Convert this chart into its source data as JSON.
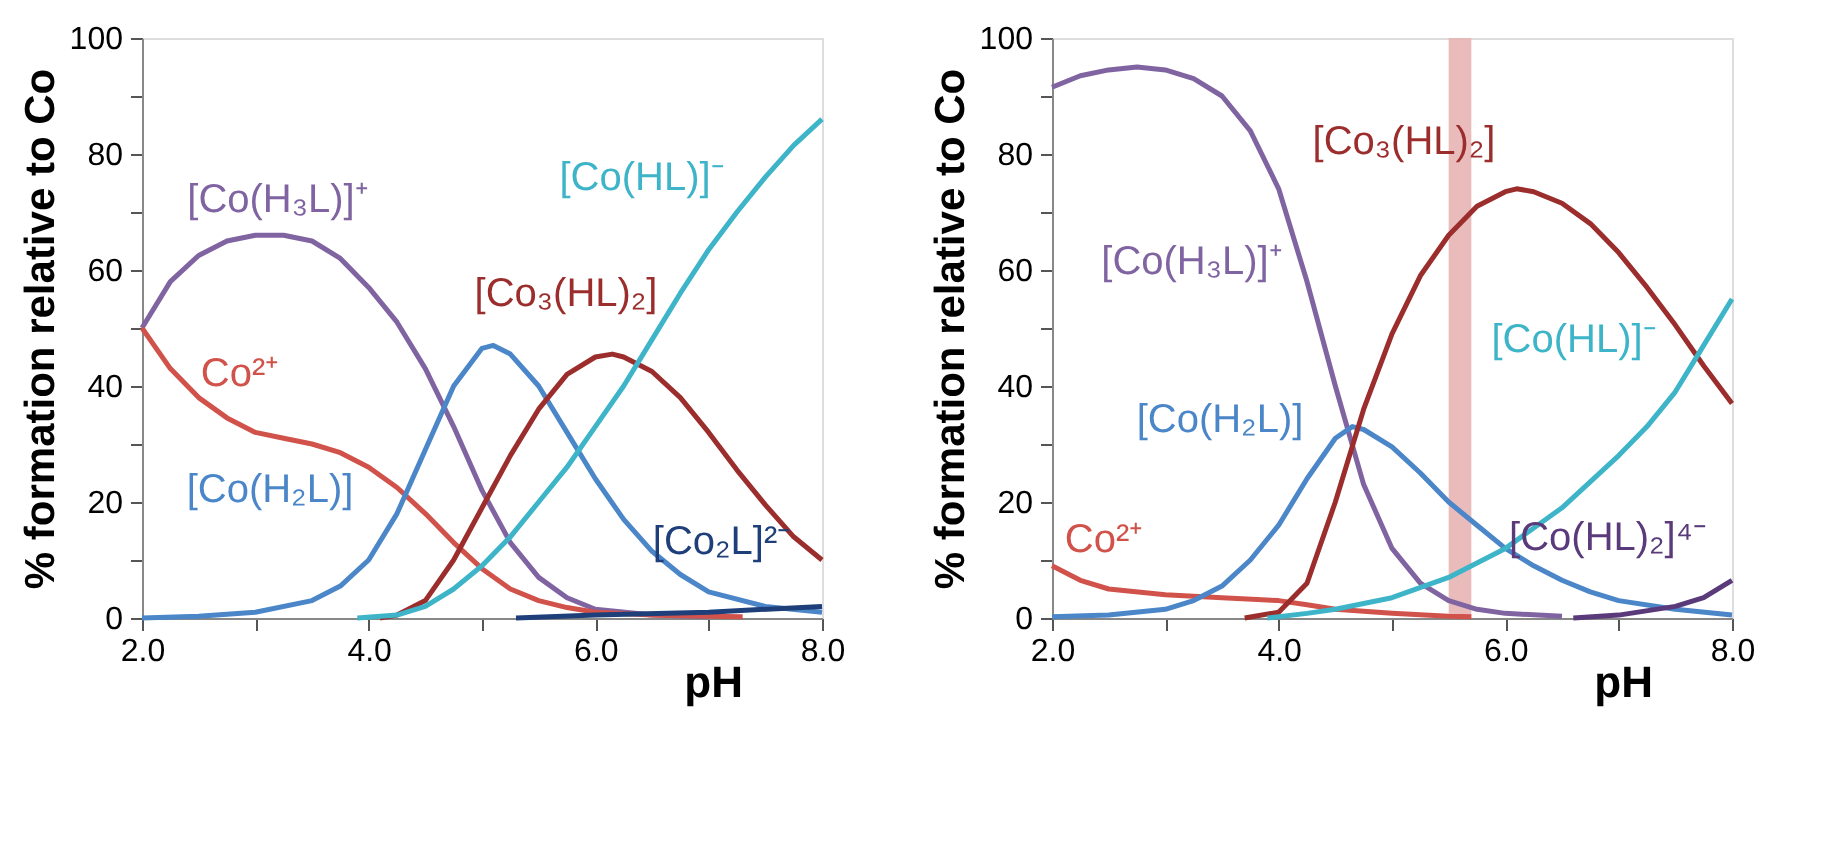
{
  "chart_data": [
    {
      "type": "line",
      "xlabel": "pH",
      "ylabel": "% formation relative to Co",
      "xlim": [
        2,
        8
      ],
      "ylim": [
        0,
        100
      ],
      "xticks": [
        {
          "value": 2,
          "label": "2.0"
        },
        {
          "value": 3,
          "label": null
        },
        {
          "value": 4,
          "label": "4.0"
        },
        {
          "value": 5,
          "label": null
        },
        {
          "value": 6,
          "label": "6.0"
        },
        {
          "value": 7,
          "label": null
        },
        {
          "value": 8,
          "label": "8.0"
        }
      ],
      "yticks": [
        0,
        {
          "value": 10,
          "label": null
        },
        20,
        {
          "value": 30,
          "label": null
        },
        40,
        {
          "value": 50,
          "label": null
        },
        60,
        {
          "value": 70,
          "label": null
        },
        80,
        {
          "value": 90,
          "label": null
        },
        100
      ],
      "grid": false,
      "marker": "none",
      "line_style": "solid",
      "series": [
        {
          "name": "[Co(H₃L)]⁺",
          "color": "#8064a2",
          "x": [
            2.0,
            2.25,
            2.5,
            2.75,
            3.0,
            3.25,
            3.5,
            3.75,
            4.0,
            4.25,
            4.5,
            4.75,
            5.0,
            5.25,
            5.5,
            5.75,
            6.0,
            6.5,
            7.0
          ],
          "values": [
            50,
            58,
            62.5,
            65,
            66,
            66,
            65,
            62,
            57,
            51,
            43,
            33,
            22,
            13,
            7,
            3.5,
            1.5,
            0.5,
            0.2
          ]
        },
        {
          "name": "Co²⁺",
          "color": "#d0524a",
          "x": [
            2.0,
            2.25,
            2.5,
            2.75,
            3.0,
            3.25,
            3.5,
            3.75,
            4.0,
            4.25,
            4.5,
            4.75,
            5.0,
            5.25,
            5.5,
            5.75,
            6.0,
            6.5,
            7.0,
            7.3
          ],
          "values": [
            50,
            43,
            38,
            34.5,
            32,
            31,
            30,
            28.5,
            26,
            22.5,
            18,
            13,
            8.5,
            5,
            3,
            1.8,
            1,
            0.5,
            0.3,
            0.2
          ]
        },
        {
          "name": "[Co(H₂L)]",
          "color": "#4a86c8",
          "x": [
            2.0,
            2.5,
            3.0,
            3.5,
            3.75,
            4.0,
            4.25,
            4.5,
            4.75,
            5.0,
            5.1,
            5.25,
            5.5,
            5.75,
            6.0,
            6.25,
            6.5,
            6.75,
            7.0,
            7.5,
            8.0
          ],
          "values": [
            0,
            0.3,
            1,
            3,
            5.5,
            10,
            18,
            29,
            40,
            46.5,
            47,
            45.5,
            40,
            32,
            24,
            17,
            11.5,
            7.5,
            4.5,
            2,
            1
          ]
        },
        {
          "name": "[Co₃(HL)₂]",
          "color": "#9b2d2d",
          "x": [
            4.1,
            4.25,
            4.5,
            4.75,
            5.0,
            5.25,
            5.5,
            5.75,
            6.0,
            6.15,
            6.25,
            6.5,
            6.75,
            7.0,
            7.25,
            7.5,
            7.75,
            8.0
          ],
          "values": [
            0,
            0.5,
            3,
            10,
            19,
            28,
            36,
            42,
            45,
            45.5,
            45,
            42.5,
            38,
            32,
            25.5,
            19.5,
            14,
            10
          ]
        },
        {
          "name": "[Co(HL)]⁻",
          "color": "#3db4c8",
          "x": [
            3.9,
            4.25,
            4.5,
            4.75,
            5.0,
            5.25,
            5.5,
            5.75,
            6.0,
            6.25,
            6.5,
            6.75,
            7.0,
            7.25,
            7.5,
            7.75,
            8.0
          ],
          "values": [
            0,
            0.5,
            2,
            5,
            9,
            14,
            20,
            26,
            33,
            40,
            48,
            56,
            63.5,
            70,
            76,
            81.5,
            86
          ]
        },
        {
          "name": "[Co₂L]²⁻",
          "color": "#1f3f7a",
          "x": [
            5.3,
            6.0,
            7.0,
            8.0
          ],
          "values": [
            0,
            0.5,
            1,
            2
          ]
        }
      ]
    },
    {
      "type": "line",
      "xlabel": "pH",
      "ylabel": "% formation relative to Co",
      "xlim": [
        2,
        8
      ],
      "ylim": [
        0,
        100
      ],
      "xticks": [
        {
          "value": 2,
          "label": "2.0"
        },
        {
          "value": 3,
          "label": null
        },
        {
          "value": 4,
          "label": "4.0"
        },
        {
          "value": 5,
          "label": null
        },
        {
          "value": 6,
          "label": "6.0"
        },
        {
          "value": 7,
          "label": null
        },
        {
          "value": 8,
          "label": "8.0"
        }
      ],
      "yticks": [
        0,
        {
          "value": 10,
          "label": null
        },
        20,
        {
          "value": 30,
          "label": null
        },
        40,
        {
          "value": 50,
          "label": null
        },
        60,
        {
          "value": 70,
          "label": null
        },
        80,
        {
          "value": 90,
          "label": null
        },
        100
      ],
      "grid": false,
      "marker": "none",
      "line_style": "solid",
      "bands": [
        {
          "axis": "x",
          "from": 5.5,
          "to": 5.7,
          "color": "#e8b4b4"
        }
      ],
      "series": [
        {
          "name": "[Co(H₃L)]⁺",
          "color": "#8064a2",
          "x": [
            2.0,
            2.25,
            2.5,
            2.75,
            3.0,
            3.25,
            3.5,
            3.75,
            4.0,
            4.25,
            4.5,
            4.75,
            5.0,
            5.25,
            5.5,
            5.75,
            6.0,
            6.5
          ],
          "values": [
            91.5,
            93.5,
            94.5,
            95,
            94.5,
            93,
            90,
            84,
            74,
            58,
            40,
            23,
            12,
            6,
            3,
            1.5,
            0.8,
            0.3
          ]
        },
        {
          "name": "Co²⁺",
          "color": "#d0524a",
          "x": [
            2.0,
            2.25,
            2.5,
            3.0,
            3.5,
            4.0,
            4.25,
            4.5,
            5.0,
            5.5,
            5.7
          ],
          "values": [
            9,
            6.5,
            5,
            4,
            3.5,
            3,
            2.3,
            1.5,
            0.8,
            0.3,
            0.2
          ]
        },
        {
          "name": "[Co(H₂L)]",
          "color": "#4a86c8",
          "x": [
            2.0,
            2.5,
            3.0,
            3.25,
            3.5,
            3.75,
            4.0,
            4.25,
            4.5,
            4.65,
            4.75,
            5.0,
            5.25,
            5.5,
            5.75,
            6.0,
            6.25,
            6.5,
            6.75,
            7.0,
            7.5,
            8.0
          ],
          "values": [
            0.2,
            0.5,
            1.5,
            3,
            5.5,
            10,
            16,
            24,
            31,
            33,
            32.5,
            29.5,
            25,
            20,
            16,
            12,
            9,
            6.5,
            4.5,
            3,
            1.5,
            0.5
          ]
        },
        {
          "name": "[Co₃(HL)₂]",
          "color": "#9b2d2d",
          "x": [
            3.7,
            4.0,
            4.25,
            4.5,
            4.75,
            5.0,
            5.25,
            5.5,
            5.75,
            6.0,
            6.1,
            6.25,
            6.5,
            6.75,
            7.0,
            7.25,
            7.5,
            7.75,
            8.0
          ],
          "values": [
            0,
            1,
            6,
            20,
            36,
            49,
            59,
            66,
            71,
            73.5,
            74,
            73.5,
            71.5,
            68,
            63,
            57,
            50.5,
            43.5,
            37
          ]
        },
        {
          "name": "[Co(HL)]⁻",
          "color": "#3db4c8",
          "x": [
            3.9,
            4.25,
            4.5,
            5.0,
            5.5,
            6.0,
            6.5,
            7.0,
            7.25,
            7.5,
            7.75,
            8.0
          ],
          "values": [
            0,
            0.8,
            1.5,
            3.5,
            7,
            12,
            19,
            28,
            33,
            39,
            47,
            55
          ]
        },
        {
          "name": "[Co(HL)₂]⁴⁻",
          "color": "#5a3a7a",
          "x": [
            6.6,
            7.0,
            7.5,
            7.75,
            8.0
          ],
          "values": [
            0,
            0.5,
            2,
            3.5,
            6.5
          ]
        }
      ]
    }
  ]
}
